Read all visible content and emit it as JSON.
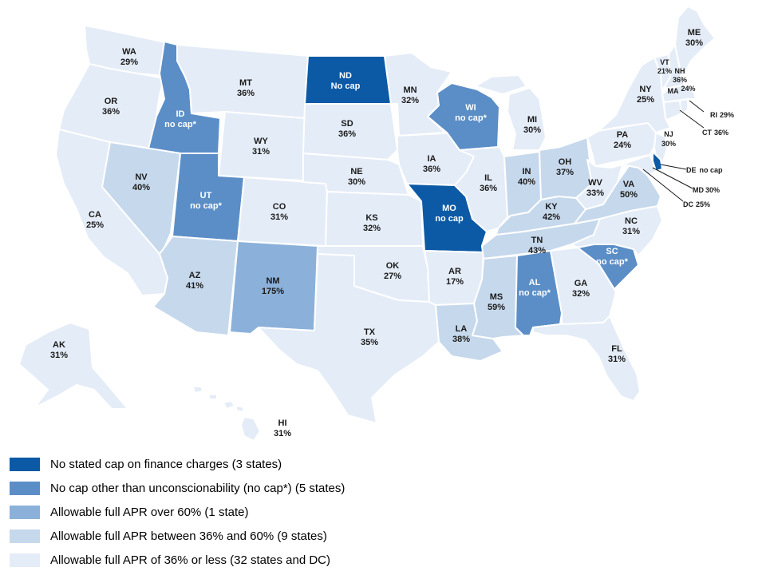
{
  "colors": {
    "no_cap": "#0c5aa6",
    "no_cap_star": "#5b8ec7",
    "over60": "#8bb1da",
    "between36_60": "#c6d8ec",
    "le36": "#e4ecf7"
  },
  "states": {
    "WA": {
      "abbr": "WA",
      "value": "29%",
      "cat": "le36"
    },
    "OR": {
      "abbr": "OR",
      "value": "36%",
      "cat": "le36"
    },
    "CA": {
      "abbr": "CA",
      "value": "25%",
      "cat": "le36"
    },
    "ID": {
      "abbr": "ID",
      "value": "no cap*",
      "cat": "no_cap_star"
    },
    "NV": {
      "abbr": "NV",
      "value": "40%",
      "cat": "between36_60"
    },
    "MT": {
      "abbr": "MT",
      "value": "36%",
      "cat": "le36"
    },
    "WY": {
      "abbr": "WY",
      "value": "31%",
      "cat": "le36"
    },
    "UT": {
      "abbr": "UT",
      "value": "no cap*",
      "cat": "no_cap_star"
    },
    "AZ": {
      "abbr": "AZ",
      "value": "41%",
      "cat": "between36_60"
    },
    "CO": {
      "abbr": "CO",
      "value": "31%",
      "cat": "le36"
    },
    "NM": {
      "abbr": "NM",
      "value": "175%",
      "cat": "over60"
    },
    "ND": {
      "abbr": "ND",
      "value": "No cap",
      "cat": "no_cap"
    },
    "SD": {
      "abbr": "SD",
      "value": "36%",
      "cat": "le36"
    },
    "NE": {
      "abbr": "NE",
      "value": "30%",
      "cat": "le36"
    },
    "KS": {
      "abbr": "KS",
      "value": "32%",
      "cat": "le36"
    },
    "OK": {
      "abbr": "OK",
      "value": "27%",
      "cat": "le36"
    },
    "TX": {
      "abbr": "TX",
      "value": "35%",
      "cat": "le36"
    },
    "MN": {
      "abbr": "MN",
      "value": "32%",
      "cat": "le36"
    },
    "IA": {
      "abbr": "IA",
      "value": "36%",
      "cat": "le36"
    },
    "MO": {
      "abbr": "MO",
      "value": "no cap",
      "cat": "no_cap"
    },
    "AR": {
      "abbr": "AR",
      "value": "17%",
      "cat": "le36"
    },
    "LA": {
      "abbr": "LA",
      "value": "38%",
      "cat": "between36_60"
    },
    "WI": {
      "abbr": "WI",
      "value": "no cap*",
      "cat": "no_cap_star"
    },
    "IL": {
      "abbr": "IL",
      "value": "36%",
      "cat": "le36"
    },
    "MI": {
      "abbr": "MI",
      "value": "30%",
      "cat": "le36"
    },
    "IN": {
      "abbr": "IN",
      "value": "40%",
      "cat": "between36_60"
    },
    "OH": {
      "abbr": "OH",
      "value": "37%",
      "cat": "between36_60"
    },
    "KY": {
      "abbr": "KY",
      "value": "42%",
      "cat": "between36_60"
    },
    "TN": {
      "abbr": "TN",
      "value": "43%",
      "cat": "between36_60"
    },
    "MS": {
      "abbr": "MS",
      "value": "59%",
      "cat": "between36_60"
    },
    "AL": {
      "abbr": "AL",
      "value": "no cap*",
      "cat": "no_cap_star"
    },
    "GA": {
      "abbr": "GA",
      "value": "32%",
      "cat": "le36"
    },
    "FL": {
      "abbr": "FL",
      "value": "31%",
      "cat": "le36"
    },
    "SC": {
      "abbr": "SC",
      "value": "no cap*",
      "cat": "no_cap_star"
    },
    "NC": {
      "abbr": "NC",
      "value": "31%",
      "cat": "le36"
    },
    "VA": {
      "abbr": "VA",
      "value": "50%",
      "cat": "between36_60"
    },
    "WV": {
      "abbr": "WV",
      "value": "33%",
      "cat": "le36"
    },
    "PA": {
      "abbr": "PA",
      "value": "24%",
      "cat": "le36"
    },
    "NY": {
      "abbr": "NY",
      "value": "25%",
      "cat": "le36"
    },
    "NJ": {
      "abbr": "NJ",
      "value": "30%",
      "cat": "le36"
    },
    "DE": {
      "abbr": "DE",
      "value": "no cap",
      "cat": "no_cap"
    },
    "MD": {
      "abbr": "MD",
      "value": "30%",
      "cat": "le36"
    },
    "DC": {
      "abbr": "DC",
      "value": "25%",
      "cat": "le36"
    },
    "VT": {
      "abbr": "VT",
      "value": "21%",
      "cat": "le36"
    },
    "NH": {
      "abbr": "NH",
      "value": "36%",
      "cat": "le36"
    },
    "MA": {
      "abbr": "MA",
      "value": "24%",
      "cat": "le36"
    },
    "RI": {
      "abbr": "RI",
      "value": "29%",
      "cat": "le36"
    },
    "CT": {
      "abbr": "CT",
      "value": "36%",
      "cat": "le36"
    },
    "ME": {
      "abbr": "ME",
      "value": "30%",
      "cat": "le36"
    },
    "AK": {
      "abbr": "AK",
      "value": "31%",
      "cat": "le36"
    },
    "HI": {
      "abbr": "HI",
      "value": "31%",
      "cat": "le36"
    }
  },
  "legend": [
    {
      "label": "No stated cap on finance charges (3 states)",
      "cat": "no_cap"
    },
    {
      "label": "No cap other than unconscionability  (no cap*) (5 states)",
      "cat": "no_cap_star"
    },
    {
      "label": "Allowable full APR over 60% (1 state)",
      "cat": "over60"
    },
    {
      "label": "Allowable full APR between 36% and 60% (9 states)",
      "cat": "between36_60"
    },
    {
      "label": "Allowable full APR of 36% or less (32 states and DC)",
      "cat": "le36"
    }
  ]
}
